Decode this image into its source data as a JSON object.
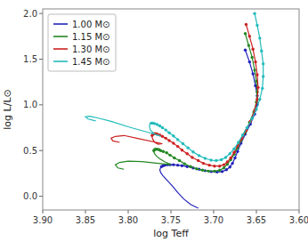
{
  "chart_data": {
    "type": "line",
    "xlabel": "log Teff",
    "ylabel": "log L/L⊙",
    "xlim": [
      3.9,
      3.6
    ],
    "ylim": [
      -0.15,
      2.05
    ],
    "xticks": [
      {
        "value": 3.9,
        "label": "3.90"
      },
      3.85,
      {
        "value": 3.8,
        "label": "3.80"
      },
      3.75,
      {
        "value": 3.7,
        "label": "3.70"
      },
      3.65,
      {
        "value": 3.6,
        "label": "3.60"
      }
    ],
    "yticks": [
      {
        "value": 0,
        "label": "0.0"
      },
      0.5,
      {
        "value": 1,
        "label": "1.0"
      },
      1.5,
      {
        "value": 2,
        "label": "2.0"
      }
    ],
    "legend": "upper left",
    "series": [
      {
        "name": "1.00 M⊙",
        "type": "line",
        "line_style": "solid",
        "color": "#2222bb",
        "x": [
          3.663,
          3.658,
          3.654,
          3.651,
          3.649,
          3.649,
          3.652,
          3.657,
          3.663,
          3.668,
          3.672,
          3.675,
          3.678,
          3.681,
          3.685,
          3.69,
          3.696,
          3.703,
          3.71,
          3.717,
          3.724,
          3.731,
          3.737,
          3.742,
          3.747,
          3.751,
          3.754,
          3.757,
          3.759,
          3.761,
          3.762,
          3.763,
          3.762,
          3.759,
          3.754,
          3.748,
          3.742,
          3.735,
          3.727,
          3.718
        ],
        "values": [
          1.6,
          1.47,
          1.34,
          1.21,
          1.1,
          1.0,
          0.9,
          0.79,
          0.68,
          0.58,
          0.49,
          0.42,
          0.36,
          0.32,
          0.29,
          0.27,
          0.265,
          0.27,
          0.28,
          0.295,
          0.31,
          0.325,
          0.335,
          0.34,
          0.345,
          0.345,
          0.345,
          0.34,
          0.335,
          0.325,
          0.31,
          0.29,
          0.26,
          0.22,
          0.17,
          0.11,
          0.04,
          -0.03,
          -0.09,
          -0.13
        ]
      },
      {
        "type": "scatter",
        "marker": "circle",
        "color": "#2222bb",
        "x": [
          3.663,
          3.658,
          3.654,
          3.651,
          3.649,
          3.649,
          3.652,
          3.657,
          3.663,
          3.668,
          3.672,
          3.675,
          3.678,
          3.681,
          3.685,
          3.69,
          3.696,
          3.703,
          3.71,
          3.717,
          3.724,
          3.731,
          3.737,
          3.742,
          3.747,
          3.751,
          3.754,
          3.757,
          3.759,
          3.761
        ],
        "values": [
          1.6,
          1.47,
          1.34,
          1.21,
          1.1,
          1.0,
          0.9,
          0.79,
          0.68,
          0.58,
          0.49,
          0.42,
          0.36,
          0.32,
          0.29,
          0.27,
          0.265,
          0.27,
          0.28,
          0.295,
          0.31,
          0.325,
          0.335,
          0.34,
          0.345,
          0.345,
          0.345,
          0.34,
          0.335,
          0.325
        ]
      },
      {
        "name": "1.15 M⊙",
        "type": "line",
        "line_style": "solid",
        "color": "#228822",
        "x": [
          3.663,
          3.659,
          3.655,
          3.652,
          3.65,
          3.649,
          3.65,
          3.653,
          3.658,
          3.663,
          3.668,
          3.672,
          3.676,
          3.68,
          3.684,
          3.688,
          3.693,
          3.699,
          3.706,
          3.713,
          3.72,
          3.727,
          3.734,
          3.74,
          3.746,
          3.751,
          3.755,
          3.759,
          3.762,
          3.764,
          3.766,
          3.768,
          3.769,
          3.77,
          3.77,
          3.769,
          3.767,
          3.763,
          3.757,
          3.75,
          3.784,
          3.8,
          3.81,
          3.815,
          3.812,
          3.805
        ],
        "values": [
          1.78,
          1.65,
          1.52,
          1.38,
          1.26,
          1.14,
          1.03,
          0.92,
          0.81,
          0.7,
          0.61,
          0.53,
          0.46,
          0.4,
          0.35,
          0.31,
          0.285,
          0.275,
          0.275,
          0.285,
          0.3,
          0.325,
          0.355,
          0.39,
          0.42,
          0.45,
          0.475,
          0.49,
          0.5,
          0.51,
          0.515,
          0.515,
          0.51,
          0.5,
          0.485,
          0.465,
          0.44,
          0.41,
          0.375,
          0.345,
          0.38,
          0.385,
          0.37,
          0.345,
          0.31,
          0.295
        ]
      },
      {
        "type": "scatter",
        "marker": "circle",
        "color": "#228822",
        "x": [
          3.663,
          3.659,
          3.655,
          3.652,
          3.65,
          3.649,
          3.65,
          3.653,
          3.658,
          3.663,
          3.668,
          3.672,
          3.676,
          3.68,
          3.684,
          3.688,
          3.693,
          3.699,
          3.706,
          3.713,
          3.72,
          3.727,
          3.734,
          3.74,
          3.746,
          3.751,
          3.755,
          3.759,
          3.762,
          3.764,
          3.766,
          3.768,
          3.769,
          3.77
        ],
        "values": [
          1.78,
          1.65,
          1.52,
          1.38,
          1.26,
          1.14,
          1.03,
          0.92,
          0.81,
          0.7,
          0.61,
          0.53,
          0.46,
          0.4,
          0.35,
          0.31,
          0.285,
          0.275,
          0.275,
          0.285,
          0.3,
          0.325,
          0.355,
          0.39,
          0.42,
          0.45,
          0.475,
          0.49,
          0.5,
          0.51,
          0.515,
          0.515,
          0.51,
          0.5
        ]
      },
      {
        "name": "1.30 M⊙",
        "type": "line",
        "line_style": "solid",
        "color": "#cc2222",
        "x": [
          3.662,
          3.658,
          3.654,
          3.651,
          3.649,
          3.648,
          3.649,
          3.652,
          3.657,
          3.662,
          3.667,
          3.672,
          3.676,
          3.68,
          3.684,
          3.688,
          3.693,
          3.699,
          3.705,
          3.712,
          3.718,
          3.725,
          3.731,
          3.737,
          3.742,
          3.747,
          3.752,
          3.756,
          3.76,
          3.763,
          3.766,
          3.768,
          3.77,
          3.771,
          3.772,
          3.772,
          3.771,
          3.769,
          3.765,
          3.76,
          3.79,
          3.805,
          3.815,
          3.82,
          3.818,
          3.81
        ],
        "values": [
          1.88,
          1.75,
          1.61,
          1.47,
          1.33,
          1.19,
          1.06,
          0.94,
          0.82,
          0.72,
          0.63,
          0.55,
          0.48,
          0.42,
          0.375,
          0.345,
          0.33,
          0.33,
          0.34,
          0.36,
          0.39,
          0.425,
          0.465,
          0.505,
          0.545,
          0.58,
          0.61,
          0.635,
          0.655,
          0.67,
          0.68,
          0.685,
          0.685,
          0.68,
          0.665,
          0.645,
          0.62,
          0.59,
          0.57,
          0.575,
          0.635,
          0.665,
          0.655,
          0.635,
          0.605,
          0.59
        ]
      },
      {
        "type": "scatter",
        "marker": "circle",
        "color": "#cc2222",
        "x": [
          3.662,
          3.658,
          3.654,
          3.651,
          3.649,
          3.648,
          3.649,
          3.652,
          3.657,
          3.662,
          3.667,
          3.672,
          3.676,
          3.68,
          3.684,
          3.688,
          3.693,
          3.699,
          3.705,
          3.712,
          3.718,
          3.725,
          3.731,
          3.737,
          3.742,
          3.747,
          3.752,
          3.756,
          3.76,
          3.763,
          3.766,
          3.768,
          3.77,
          3.771,
          3.772
        ],
        "values": [
          1.88,
          1.75,
          1.61,
          1.47,
          1.33,
          1.19,
          1.06,
          0.94,
          0.82,
          0.72,
          0.63,
          0.55,
          0.48,
          0.42,
          0.375,
          0.345,
          0.33,
          0.33,
          0.34,
          0.36,
          0.39,
          0.425,
          0.465,
          0.505,
          0.545,
          0.58,
          0.61,
          0.635,
          0.655,
          0.67,
          0.68,
          0.685,
          0.685,
          0.68,
          0.665
        ]
      },
      {
        "name": "1.45 M⊙",
        "type": "line",
        "line_style": "solid",
        "color": "#22bbbb",
        "x": [
          3.652,
          3.649,
          3.646,
          3.644,
          3.642,
          3.642,
          3.643,
          3.646,
          3.65,
          3.655,
          3.661,
          3.666,
          3.671,
          3.676,
          3.681,
          3.686,
          3.691,
          3.697,
          3.703,
          3.71,
          3.717,
          3.724,
          3.73,
          3.736,
          3.742,
          3.747,
          3.752,
          3.756,
          3.76,
          3.763,
          3.766,
          3.769,
          3.771,
          3.773,
          3.774,
          3.775,
          3.775,
          3.774,
          3.771,
          3.767,
          3.762,
          3.8,
          3.82,
          3.835,
          3.845,
          3.85,
          3.847,
          3.838
        ],
        "values": [
          2.0,
          1.87,
          1.73,
          1.59,
          1.45,
          1.31,
          1.18,
          1.06,
          0.95,
          0.85,
          0.75,
          0.67,
          0.59,
          0.52,
          0.465,
          0.425,
          0.4,
          0.39,
          0.395,
          0.415,
          0.445,
          0.485,
          0.53,
          0.575,
          0.62,
          0.66,
          0.695,
          0.725,
          0.75,
          0.77,
          0.785,
          0.795,
          0.8,
          0.8,
          0.795,
          0.78,
          0.755,
          0.725,
          0.695,
          0.67,
          0.66,
          0.76,
          0.82,
          0.855,
          0.875,
          0.87,
          0.845,
          0.825
        ]
      },
      {
        "type": "scatter",
        "marker": "circle",
        "color": "#22bbbb",
        "x": [
          3.652,
          3.649,
          3.646,
          3.644,
          3.642,
          3.642,
          3.643,
          3.646,
          3.65,
          3.655,
          3.661,
          3.666,
          3.671,
          3.676,
          3.681,
          3.686,
          3.691,
          3.697,
          3.703,
          3.71,
          3.717,
          3.724,
          3.73,
          3.736,
          3.742,
          3.747,
          3.752,
          3.756,
          3.76,
          3.763,
          3.766,
          3.769,
          3.771,
          3.773
        ],
        "values": [
          2.0,
          1.87,
          1.73,
          1.59,
          1.45,
          1.31,
          1.18,
          1.06,
          0.95,
          0.85,
          0.75,
          0.67,
          0.59,
          0.52,
          0.465,
          0.425,
          0.4,
          0.39,
          0.395,
          0.415,
          0.445,
          0.485,
          0.53,
          0.575,
          0.62,
          0.66,
          0.695,
          0.725,
          0.75,
          0.77,
          0.785,
          0.795,
          0.8,
          0.8
        ]
      }
    ]
  }
}
